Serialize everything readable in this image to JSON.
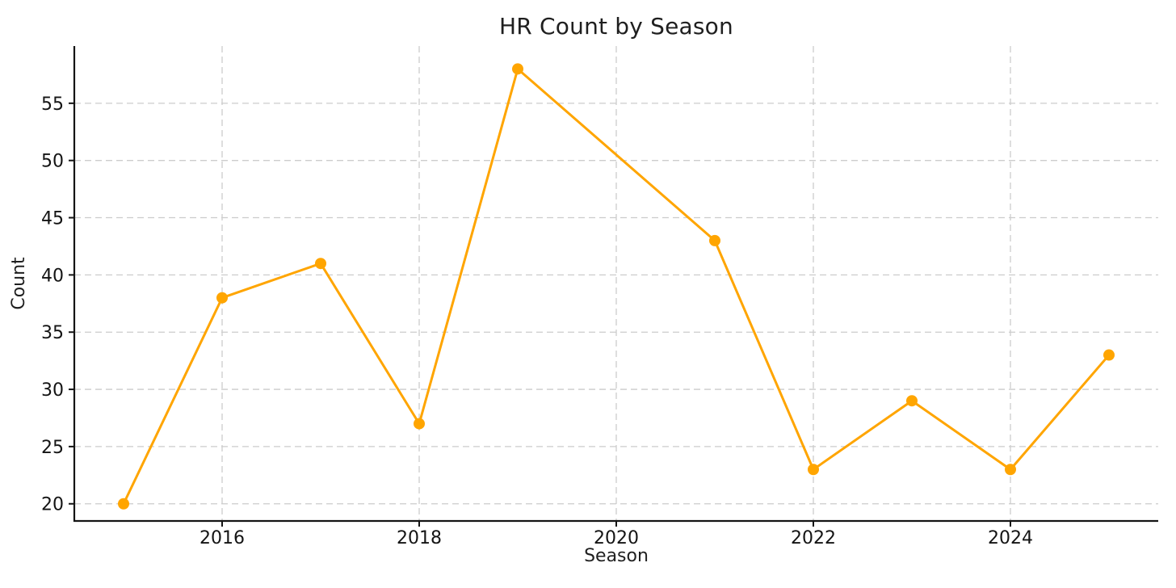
{
  "figure": {
    "background": "#ffffff",
    "text_color": "#1f1f1f"
  },
  "chart_data": {
    "type": "line",
    "title": "HR Count by Season",
    "xlabel": "Season",
    "ylabel": "Count",
    "x": [
      2015,
      2016,
      2017,
      2018,
      2019,
      2021,
      2022,
      2023,
      2024,
      2025
    ],
    "values": [
      20,
      38,
      41,
      27,
      58,
      43,
      23,
      29,
      23,
      33
    ],
    "series": [
      {
        "name": "HR Count",
        "x": [
          2015,
          2016,
          2017,
          2018,
          2019,
          2021,
          2022,
          2023,
          2024,
          2025
        ],
        "values": [
          20,
          38,
          41,
          27,
          58,
          43,
          23,
          29,
          23,
          33
        ]
      }
    ],
    "x_ticks": [
      2016,
      2018,
      2020,
      2022,
      2024
    ],
    "y_ticks": [
      20,
      25,
      30,
      35,
      40,
      45,
      50,
      55
    ],
    "xlim": [
      2014.5,
      2025.5
    ],
    "ylim": [
      18.5,
      60
    ],
    "line_color": "#FFA500",
    "marker": "circle",
    "marker_radius": 7,
    "grid": "dashed",
    "grid_color": "#cccccc",
    "legend_position": "none",
    "note_missing_x": [
      2020
    ]
  }
}
